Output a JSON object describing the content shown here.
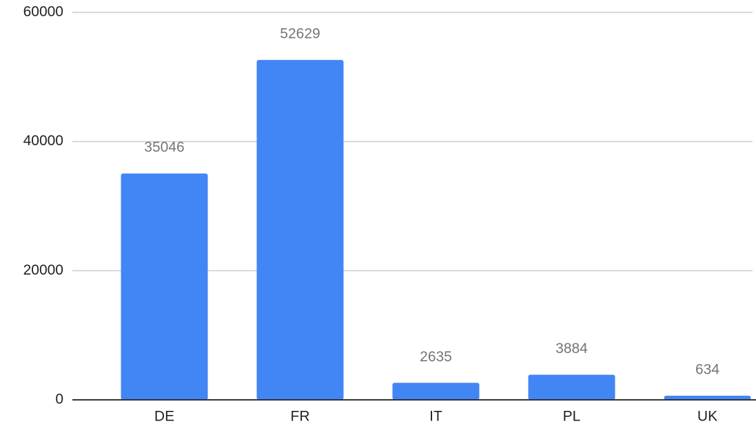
{
  "chart_data": {
    "type": "bar",
    "categories": [
      "DE",
      "FR",
      "IT",
      "PL",
      "UK"
    ],
    "values": [
      35046,
      52629,
      2635,
      3884,
      634
    ],
    "color": "#4285f4",
    "ylim": [
      0,
      60000
    ],
    "yticks": [
      0,
      20000,
      40000,
      60000
    ],
    "grid": true
  }
}
